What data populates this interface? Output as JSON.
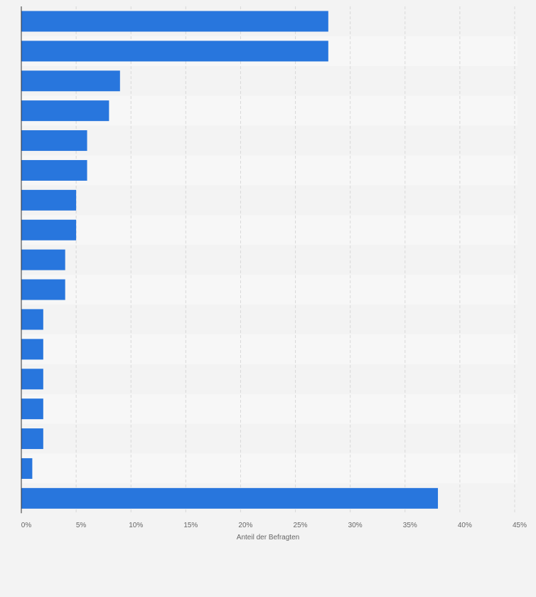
{
  "chart_data": {
    "type": "bar",
    "orientation": "horizontal",
    "title": "",
    "xlabel": "Anteil der Befragten",
    "ylabel": "",
    "categories": [
      "",
      "",
      "",
      "",
      "",
      "",
      "",
      "",
      "",
      "",
      "",
      "",
      "",
      "",
      "",
      "",
      ""
    ],
    "values": [
      28,
      28,
      9,
      8,
      6,
      6,
      5,
      5,
      4,
      4,
      2,
      2,
      2,
      2,
      2,
      1,
      38
    ],
    "xlim": [
      0,
      45
    ],
    "x_ticks": [
      "0%",
      "5%",
      "10%",
      "15%",
      "20%",
      "25%",
      "30%",
      "35%",
      "40%",
      "45%"
    ],
    "grid": true,
    "bar_color": "#2876dd"
  }
}
